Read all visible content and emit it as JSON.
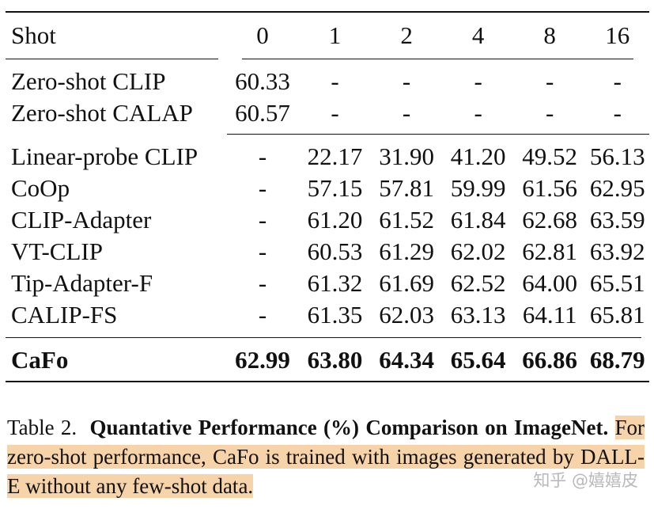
{
  "table": {
    "header": [
      "Shot",
      "0",
      "1",
      "2",
      "4",
      "8",
      "16"
    ],
    "group_zero": [
      {
        "name": "Zero-shot CLIP",
        "values": [
          "60.33",
          "-",
          "-",
          "-",
          "-",
          "-"
        ]
      },
      {
        "name": "Zero-shot CALAP",
        "values": [
          "60.57",
          "-",
          "-",
          "-",
          "-",
          "-"
        ]
      }
    ],
    "group_few": [
      {
        "name": "Linear-probe CLIP",
        "values": [
          "-",
          "22.17",
          "31.90",
          "41.20",
          "49.52",
          "56.13"
        ]
      },
      {
        "name": "CoOp",
        "values": [
          "-",
          "57.15",
          "57.81",
          "59.99",
          "61.56",
          "62.95"
        ]
      },
      {
        "name": "CLIP-Adapter",
        "values": [
          "-",
          "61.20",
          "61.52",
          "61.84",
          "62.68",
          "63.59"
        ]
      },
      {
        "name": "VT-CLIP",
        "values": [
          "-",
          "60.53",
          "61.29",
          "62.02",
          "62.81",
          "63.92"
        ]
      },
      {
        "name": "Tip-Adapter-F",
        "values": [
          "-",
          "61.32",
          "61.69",
          "62.52",
          "64.00",
          "65.51"
        ]
      },
      {
        "name": "CALIP-FS",
        "values": [
          "-",
          "61.35",
          "62.03",
          "63.13",
          "64.11",
          "65.81"
        ]
      }
    ],
    "ours": {
      "name": "CaFo",
      "values": [
        "62.99",
        "63.80",
        "64.34",
        "65.64",
        "66.86",
        "68.79"
      ]
    }
  },
  "caption": {
    "label": "Table 2.",
    "title": "Quantative Performance (%) Comparison on ImageNet.",
    "body": "For zero-shot performance, CaFo is trained with images generated by DALL-E without any few-shot data."
  },
  "watermark": "知乎 @嬉嬉皮"
}
